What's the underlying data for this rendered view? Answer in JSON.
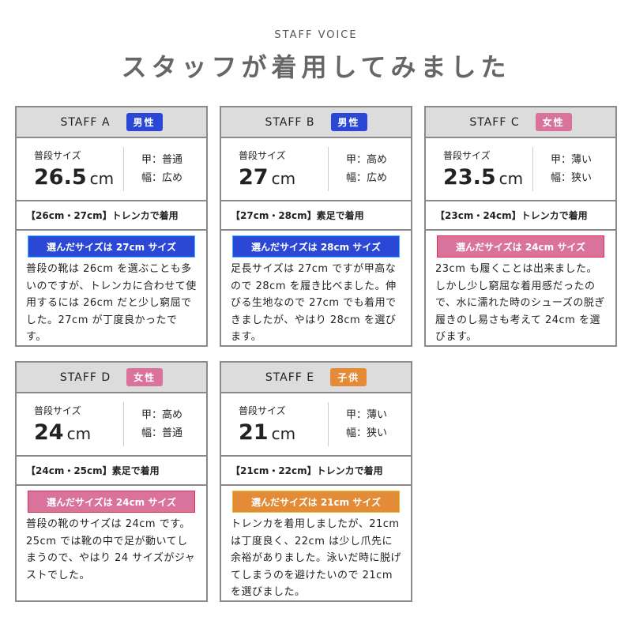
{
  "header": {
    "subtitle": "STAFF VOICE",
    "title": "スタッフが着用してみました"
  },
  "colors": {
    "male": "#2b47d6",
    "female": "#d9739b",
    "child": "#e38b36"
  },
  "cards": [
    {
      "name": "STAFF A",
      "badge": "男性",
      "badge_type": "male",
      "usual_label": "普段サイズ",
      "size": "26.5",
      "unit": "cm",
      "instep": "甲：普通",
      "width": "幅：広め",
      "note": "【26cm・27cm】トレンカで着用",
      "pick": "選んだサイズは 27cm サイズ",
      "comment": "普段の靴は 26cm を選ぶことも多いのですが、トレンカに合わせて使用するには 26cm だと少し窮屈でした。27cm が丁度良かったです。"
    },
    {
      "name": "STAFF B",
      "badge": "男性",
      "badge_type": "male",
      "usual_label": "普段サイズ",
      "size": "27",
      "unit": "cm",
      "instep": "甲：高め",
      "width": "幅：広め",
      "note": "【27cm・28cm】素足で着用",
      "pick": "選んだサイズは 28cm サイズ",
      "comment": "足長サイズは 27cm ですが甲高なので 28cm を履き比べました。伸びる生地なので 27cm でも着用できましたが、やはり 28cm を選びます。"
    },
    {
      "name": "STAFF C",
      "badge": "女性",
      "badge_type": "female",
      "usual_label": "普段サイズ",
      "size": "23.5",
      "unit": "cm",
      "instep": "甲：薄い",
      "width": "幅：狭い",
      "note": "【23cm・24cm】トレンカで着用",
      "pick": "選んだサイズは 24cm サイズ",
      "comment": "23cm も履くことは出来ました。しかし少し窮屈な着用感だったので、水に濡れた時のシューズの脱ぎ履きのし易さも考えて 24cm を選びます。"
    },
    {
      "name": "STAFF D",
      "badge": "女性",
      "badge_type": "female",
      "usual_label": "普段サイズ",
      "size": "24",
      "unit": "cm",
      "instep": "甲：高め",
      "width": "幅：普通",
      "note": "【24cm・25cm】素足で着用",
      "pick": "選んだサイズは 24cm サイズ",
      "comment": "普段の靴のサイズは 24cm です。25cm では靴の中で足が動いてしまうので、やはり 24 サイズがジャストでした。"
    },
    {
      "name": "STAFF E",
      "badge": "子供",
      "badge_type": "child",
      "usual_label": "普段サイズ",
      "size": "21",
      "unit": "cm",
      "instep": "甲：薄い",
      "width": "幅：狭い",
      "note": "【21cm・22cm】トレンカで着用",
      "pick": "選んだサイズは 21cm サイズ",
      "comment": "トレンカを着用しましたが、21cm は丁度良く、22cm は少し爪先に余裕がありました。泳いだ時に脱げてしまうのを避けたいので 21cm を選びました。"
    }
  ]
}
